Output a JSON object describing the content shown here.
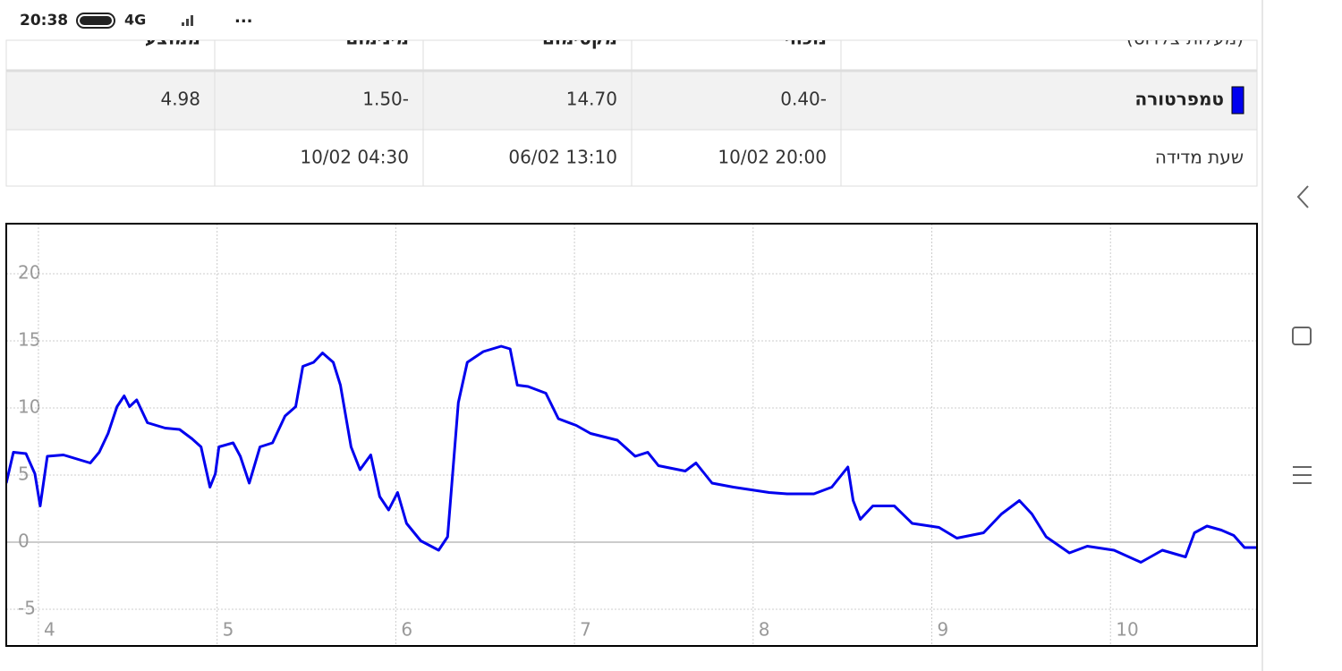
{
  "status_bar": {
    "time": "20:38",
    "network": "4G",
    "more": "..."
  },
  "table": {
    "header": [
      "(מעלות צלזיוס)",
      "נוכחי",
      "מקסימום",
      "מינימום",
      "ממוצע"
    ],
    "rows": [
      [
        "טמפרטורה",
        "0.40-",
        "14.70",
        "1.50-",
        "4.98"
      ],
      [
        "שעת מדידה",
        "10/02 20:00",
        "06/02 13:10",
        "10/02 04:30"
      ]
    ]
  },
  "chart_data": {
    "type": "line",
    "x": [
      3.82,
      3.86,
      3.93,
      3.98,
      4.01,
      4.05,
      4.14,
      4.24,
      4.29,
      4.34,
      4.39,
      4.44,
      4.48,
      4.51,
      4.55,
      4.61,
      4.71,
      4.79,
      4.86,
      4.91,
      4.96,
      4.99,
      5.01,
      5.09,
      5.13,
      5.18,
      5.24,
      5.31,
      5.38,
      5.44,
      5.48,
      5.54,
      5.59,
      5.65,
      5.69,
      5.75,
      5.8,
      5.86,
      5.91,
      5.96,
      6.01,
      6.06,
      6.14,
      6.24,
      6.29,
      6.35,
      6.4,
      6.49,
      6.59,
      6.64,
      6.68,
      6.74,
      6.84,
      6.91,
      7.01,
      7.09,
      7.24,
      7.34,
      7.41,
      7.47,
      7.62,
      7.68,
      7.77,
      7.89,
      7.99,
      8.09,
      8.19,
      8.34,
      8.44,
      8.53,
      8.56,
      8.6,
      8.67,
      8.79,
      8.89,
      9.04,
      9.14,
      9.29,
      9.39,
      9.49,
      9.56,
      9.64,
      9.77,
      9.87,
      10.02,
      10.17,
      10.29,
      10.42,
      10.47,
      10.54,
      10.62,
      10.69,
      10.75,
      10.82
    ],
    "series": [
      {
        "color": "#0000ee",
        "values": [
          4.4,
          6.7,
          6.6,
          5.1,
          2.7,
          6.4,
          6.5,
          6.1,
          5.9,
          6.7,
          8.1,
          10.1,
          10.9,
          10.1,
          10.6,
          8.9,
          8.5,
          8.4,
          7.7,
          7.1,
          4.1,
          5.1,
          7.1,
          7.4,
          6.4,
          4.4,
          7.1,
          7.4,
          9.4,
          10.1,
          13.1,
          13.4,
          14.1,
          13.4,
          11.7,
          7.1,
          5.4,
          6.5,
          3.4,
          2.4,
          3.7,
          1.4,
          0.1,
          -0.6,
          0.4,
          10.4,
          13.4,
          14.2,
          14.6,
          14.4,
          11.7,
          11.6,
          11.1,
          9.2,
          8.7,
          8.1,
          7.6,
          6.4,
          6.7,
          5.7,
          5.3,
          5.9,
          4.4,
          4.1,
          3.9,
          3.7,
          3.6,
          3.6,
          4.1,
          5.6,
          3.1,
          1.7,
          2.7,
          2.7,
          1.4,
          1.1,
          0.3,
          0.7,
          2.1,
          3.1,
          2.1,
          0.4,
          -0.8,
          -0.3,
          -0.6,
          -1.5,
          -0.6,
          -1.1,
          0.7,
          1.2,
          0.9,
          0.5,
          -0.4,
          -0.4
        ]
      }
    ],
    "xlim": [
      3.82,
      10.82
    ],
    "ylim": [
      -7.73,
      23.73
    ],
    "xticks": [
      4,
      5,
      6,
      7,
      8,
      9,
      10
    ],
    "yticks": [
      -5,
      0,
      5,
      10,
      15,
      20
    ],
    "grid": true
  }
}
